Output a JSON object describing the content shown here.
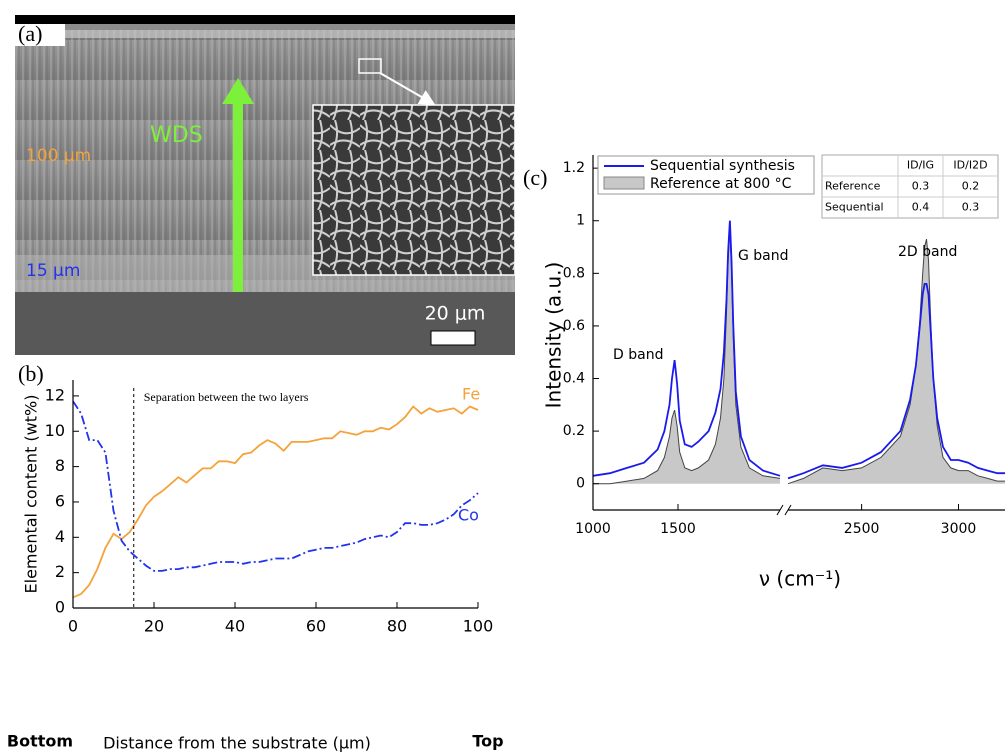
{
  "sem_image": {
    "panel_label": "(a)",
    "arrow_label": "WDS",
    "top_layer": "100 μm",
    "bottom_layer": "15 μm",
    "scale_bar": "20 μm"
  },
  "chart_data": [
    {
      "type": "line",
      "panel_label": "(b)",
      "x_label": "Distance from the substrate (μm)",
      "y_label": "Elemental content (wt%)",
      "x_end_labels": [
        "Bottom",
        "Top"
      ],
      "annotation": "Separation between the two layers",
      "separation_x": 15,
      "x": [
        0,
        2,
        4,
        6,
        8,
        10,
        12,
        14,
        16,
        18,
        20,
        22,
        24,
        26,
        28,
        30,
        32,
        34,
        36,
        38,
        40,
        42,
        44,
        46,
        48,
        50,
        52,
        54,
        56,
        58,
        60,
        62,
        64,
        66,
        68,
        70,
        72,
        74,
        76,
        78,
        80,
        82,
        84,
        86,
        88,
        90,
        92,
        94,
        96,
        98,
        100
      ],
      "series": [
        {
          "name": "Fe",
          "color": "#f5a23a",
          "style": "solid",
          "values": [
            0.6,
            0.8,
            1.3,
            2.2,
            3.4,
            4.2,
            3.9,
            4.3,
            5.0,
            5.8,
            6.3,
            6.6,
            7.0,
            7.4,
            7.1,
            7.5,
            7.9,
            7.9,
            8.3,
            8.3,
            8.2,
            8.7,
            8.8,
            9.2,
            9.5,
            9.3,
            8.9,
            9.4,
            9.4,
            9.4,
            9.5,
            9.6,
            9.6,
            10.0,
            9.9,
            9.8,
            10.0,
            10.0,
            10.2,
            10.1,
            10.4,
            10.8,
            11.4,
            11.0,
            11.3,
            11.1,
            11.2,
            11.3,
            11.0,
            11.4,
            11.2
          ]
        },
        {
          "name": "Co",
          "color": "#2233ee",
          "style": "dashdot",
          "values": [
            11.7,
            11.0,
            9.5,
            9.5,
            8.8,
            5.5,
            3.8,
            3.2,
            2.8,
            2.4,
            2.1,
            2.1,
            2.2,
            2.2,
            2.3,
            2.3,
            2.4,
            2.5,
            2.6,
            2.6,
            2.6,
            2.5,
            2.6,
            2.6,
            2.7,
            2.8,
            2.8,
            2.8,
            3.0,
            3.2,
            3.3,
            3.4,
            3.4,
            3.5,
            3.6,
            3.7,
            3.9,
            4.0,
            4.1,
            4.0,
            4.3,
            4.8,
            4.8,
            4.7,
            4.7,
            4.8,
            5.0,
            5.3,
            5.8,
            6.1,
            6.5
          ]
        }
      ],
      "xlim": [
        0,
        100
      ],
      "xticks": [
        0,
        20,
        40,
        60,
        80,
        100
      ],
      "ylim": [
        0,
        12.9
      ],
      "yticks": [
        0,
        2,
        4,
        6,
        8,
        10,
        12
      ]
    },
    {
      "type": "line",
      "panel_label": "(c)",
      "x_label": "ν (cm⁻¹)",
      "y_label": "Intensity (a.u.)",
      "annotations": [
        "D band",
        "G band",
        "2D band"
      ],
      "x": [
        1000,
        1100,
        1200,
        1300,
        1380,
        1420,
        1450,
        1465,
        1480,
        1495,
        1510,
        1540,
        1580,
        1620,
        1680,
        1720,
        1750,
        1770,
        1785,
        1795,
        1805,
        1815,
        1825,
        1840,
        1870,
        1920,
        2000,
        2100,
        2110,
        2120,
        2200,
        2300,
        2400,
        2500,
        2600,
        2700,
        2750,
        2780,
        2800,
        2815,
        2825,
        2835,
        2845,
        2855,
        2870,
        2890,
        2920,
        2960,
        3000,
        3050,
        3100,
        3150,
        3200,
        3240
      ],
      "series": [
        {
          "name": "Reference at 800 °C",
          "color": "#c8c8c8",
          "style": "area",
          "values": [
            0.0,
            0.0,
            0.01,
            0.02,
            0.05,
            0.1,
            0.18,
            0.25,
            0.28,
            0.22,
            0.12,
            0.06,
            0.05,
            0.06,
            0.09,
            0.15,
            0.25,
            0.4,
            0.65,
            0.85,
            0.97,
            0.82,
            0.55,
            0.3,
            0.14,
            0.06,
            0.03,
            0.02,
            null,
            0.0,
            0.02,
            0.06,
            0.05,
            0.06,
            0.1,
            0.18,
            0.3,
            0.45,
            0.62,
            0.8,
            0.9,
            0.93,
            0.85,
            0.65,
            0.4,
            0.22,
            0.1,
            0.06,
            0.05,
            0.05,
            0.03,
            0.02,
            0.01,
            0.01
          ]
        },
        {
          "name": "Sequential synthesis",
          "color": "#1a1aee",
          "style": "solid",
          "values": [
            0.03,
            0.04,
            0.06,
            0.08,
            0.13,
            0.2,
            0.3,
            0.4,
            0.47,
            0.38,
            0.24,
            0.15,
            0.14,
            0.16,
            0.2,
            0.27,
            0.36,
            0.5,
            0.7,
            0.88,
            1.0,
            0.85,
            0.6,
            0.35,
            0.18,
            0.09,
            0.05,
            0.03,
            null,
            0.02,
            0.04,
            0.07,
            0.06,
            0.08,
            0.12,
            0.2,
            0.32,
            0.45,
            0.6,
            0.72,
            0.76,
            0.76,
            0.72,
            0.6,
            0.4,
            0.25,
            0.14,
            0.09,
            0.09,
            0.08,
            0.06,
            0.05,
            0.04,
            0.04
          ]
        }
      ],
      "xlim": [
        1000,
        3240
      ],
      "x_break": [
        2100,
        2120
      ],
      "xticks": [
        1000,
        1500,
        2500,
        3000
      ],
      "ylim": [
        -0.1,
        1.25
      ],
      "yticks": [
        0,
        0.2,
        0.4,
        0.6,
        0.8,
        1,
        1.2
      ],
      "table": {
        "columns": [
          "ID/IG",
          "ID/I2D"
        ],
        "rows": [
          {
            "name": "Reference",
            "values": [
              0.3,
              0.2
            ]
          },
          {
            "name": "Sequential",
            "values": [
              0.4,
              0.3
            ]
          }
        ]
      }
    }
  ]
}
